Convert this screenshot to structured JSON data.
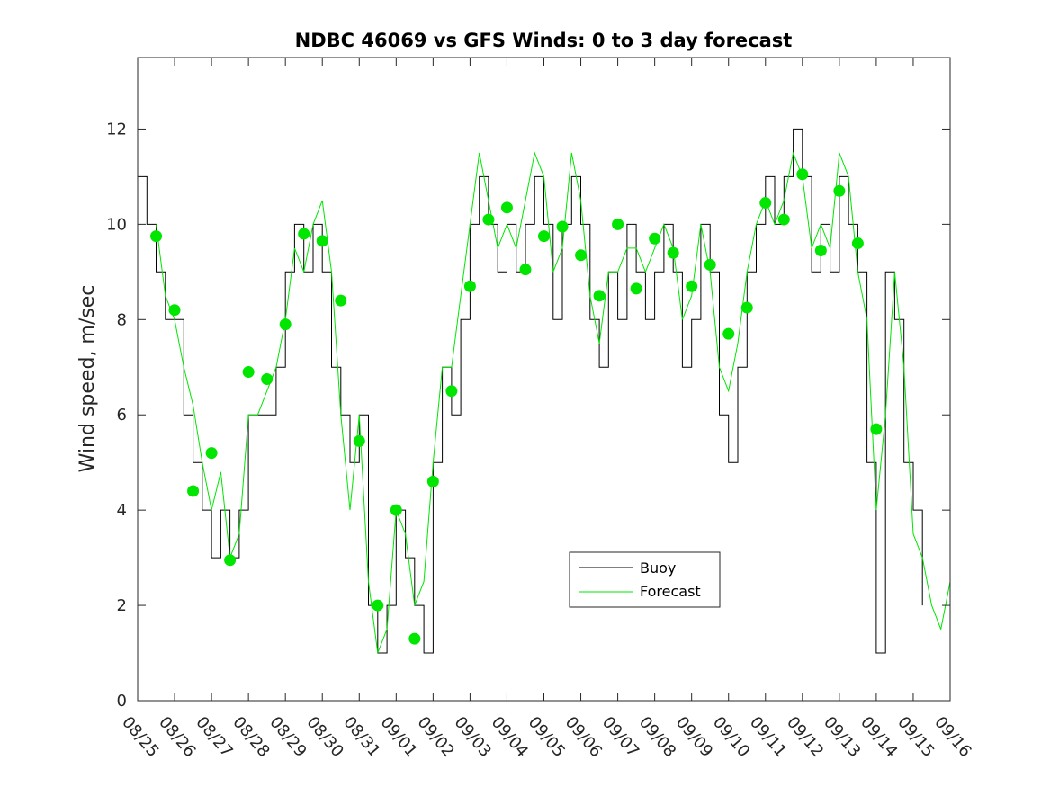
{
  "chart_data": {
    "type": "line",
    "title": "NDBC 46069 vs GFS Winds: 0 to 3 day forecast",
    "xlabel": "",
    "ylabel": "Wind speed, m/sec",
    "xlim": [
      0,
      22
    ],
    "ylim": [
      0,
      13.5
    ],
    "grid": false,
    "legend_position": "bottom-center",
    "x_tick_labels": [
      "08/25",
      "08/26",
      "08/27",
      "08/28",
      "08/29",
      "08/30",
      "08/31",
      "09/01",
      "09/02",
      "09/03",
      "09/04",
      "09/05",
      "09/06",
      "09/07",
      "09/08",
      "09/09",
      "09/10",
      "09/11",
      "09/12",
      "09/13",
      "09/14",
      "09/15",
      "09/16"
    ],
    "y_ticks": [
      0,
      2,
      4,
      6,
      8,
      10,
      12
    ],
    "series": [
      {
        "name": "Buoy",
        "color": "#000000",
        "x": [
          0.0,
          0.25,
          0.5,
          0.75,
          1.0,
          1.25,
          1.5,
          1.75,
          2.0,
          2.25,
          2.5,
          2.75,
          3.0,
          3.25,
          3.5,
          3.75,
          4.0,
          4.25,
          4.5,
          4.75,
          5.0,
          5.25,
          5.5,
          5.75,
          6.0,
          6.25,
          6.5,
          6.75,
          7.0,
          7.25,
          7.5,
          7.75,
          8.0,
          8.25,
          8.5,
          8.75,
          9.0,
          9.25,
          9.5,
          9.75,
          10.0,
          10.25,
          10.5,
          10.75,
          11.0,
          11.25,
          11.5,
          11.75,
          12.0,
          12.25,
          12.5,
          12.75,
          13.0,
          13.25,
          13.5,
          13.75,
          14.0,
          14.25,
          14.5,
          14.75,
          15.0,
          15.25,
          15.5,
          15.75,
          16.0,
          16.25,
          16.5,
          16.75,
          17.0,
          17.25,
          17.5,
          17.75,
          18.0,
          18.25,
          18.5,
          18.75,
          19.0,
          19.25,
          19.5,
          19.75,
          20.0,
          20.25,
          20.5,
          20.75,
          21.0,
          21.25,
          21.5,
          21.75,
          22.0
        ],
        "values": [
          11,
          10,
          9,
          8,
          8,
          6,
          5,
          4,
          3,
          4,
          3,
          4,
          6,
          6,
          6,
          7,
          9,
          10,
          9,
          10,
          9,
          7,
          6,
          5,
          6,
          2,
          1,
          2,
          4,
          3,
          2,
          1,
          5,
          7,
          6,
          8,
          10,
          11,
          10,
          9,
          10,
          9,
          10,
          11,
          10,
          8,
          10,
          11,
          10,
          8,
          7,
          9,
          8,
          10,
          9,
          8,
          9,
          10,
          9,
          7,
          8,
          10,
          9,
          6,
          5,
          7,
          9,
          10,
          11,
          10,
          11,
          12,
          11,
          9,
          10,
          9,
          11,
          10,
          9,
          5,
          1,
          9,
          8,
          5,
          4,
          2,
          null,
          null,
          null
        ]
      },
      {
        "name": "Forecast",
        "color": "#00e600",
        "x": [
          0.0,
          0.25,
          0.5,
          0.75,
          1.0,
          1.25,
          1.5,
          1.75,
          2.0,
          2.25,
          2.5,
          2.75,
          3.0,
          3.25,
          3.5,
          3.75,
          4.0,
          4.25,
          4.5,
          4.75,
          5.0,
          5.25,
          5.5,
          5.75,
          6.0,
          6.25,
          6.5,
          6.75,
          7.0,
          7.25,
          7.5,
          7.75,
          8.0,
          8.25,
          8.5,
          8.75,
          9.0,
          9.25,
          9.5,
          9.75,
          10.0,
          10.25,
          10.5,
          10.75,
          11.0,
          11.25,
          11.5,
          11.75,
          12.0,
          12.25,
          12.5,
          12.75,
          13.0,
          13.25,
          13.5,
          13.75,
          14.0,
          14.25,
          14.5,
          14.75,
          15.0,
          15.25,
          15.5,
          15.75,
          16.0,
          16.25,
          16.5,
          16.75,
          17.0,
          17.25,
          17.5,
          17.75,
          18.0,
          18.25,
          18.5,
          18.75,
          19.0,
          19.25,
          19.5,
          19.75,
          20.0,
          20.25,
          20.5,
          20.75,
          21.0,
          21.25,
          21.5,
          21.75,
          22.0
        ],
        "values": [
          null,
          null,
          10,
          8.5,
          8,
          7,
          6.2,
          5,
          4,
          4.8,
          3,
          3.5,
          6,
          6,
          6.5,
          7,
          8,
          9.5,
          9,
          10,
          10.5,
          9,
          6,
          4,
          6,
          2.5,
          1,
          1.5,
          4,
          3.5,
          2,
          2.5,
          5,
          7,
          7,
          8.5,
          10,
          11.5,
          10.5,
          9.5,
          10,
          9.5,
          10.5,
          11.5,
          11,
          9,
          9.5,
          11.5,
          10.5,
          8.5,
          7.5,
          9,
          9,
          9.5,
          9.5,
          9,
          9.5,
          10,
          9.5,
          8,
          8.5,
          10,
          9,
          7,
          6.5,
          7.5,
          9,
          10,
          10.5,
          10,
          10.5,
          11.5,
          11,
          9.5,
          10,
          9.5,
          11.5,
          11,
          9,
          8,
          4,
          6,
          9,
          7,
          3.5,
          3,
          2,
          1.5,
          2.5
        ]
      }
    ],
    "markers": {
      "series": "Forecast",
      "style": "filled circle",
      "x": [
        0.5,
        1.0,
        1.5,
        2.0,
        2.5,
        3.0,
        3.5,
        4.0,
        4.5,
        5.0,
        5.5,
        6.0,
        6.5,
        7.0,
        7.5,
        8.0,
        8.5,
        9.0,
        9.5,
        10.0,
        10.5,
        11.0,
        11.5,
        12.0,
        12.5,
        13.0,
        13.5,
        14.0,
        14.5,
        15.0,
        15.5,
        16.0,
        16.5,
        17.0,
        17.5,
        18.0,
        18.5,
        19.0,
        19.5,
        20.0,
        21.0
      ],
      "values": [
        9.75,
        8.2,
        4.4,
        5.2,
        2.95,
        6.9,
        6.75,
        7.9,
        9.8,
        9.65,
        8.4,
        5.45,
        2.0,
        4.0,
        1.3,
        4.6,
        6.5,
        8.7,
        10.1,
        10.35,
        9.05,
        9.75,
        9.95,
        9.35,
        8.5,
        10.0,
        8.65,
        9.7,
        9.4,
        8.7,
        9.15,
        7.7,
        8.25,
        10.45,
        10.1,
        11.05,
        9.45,
        10.7,
        9.6,
        5.7,
        null
      ]
    }
  },
  "legend": {
    "buoy_label": "Buoy",
    "forecast_label": "Forecast"
  }
}
